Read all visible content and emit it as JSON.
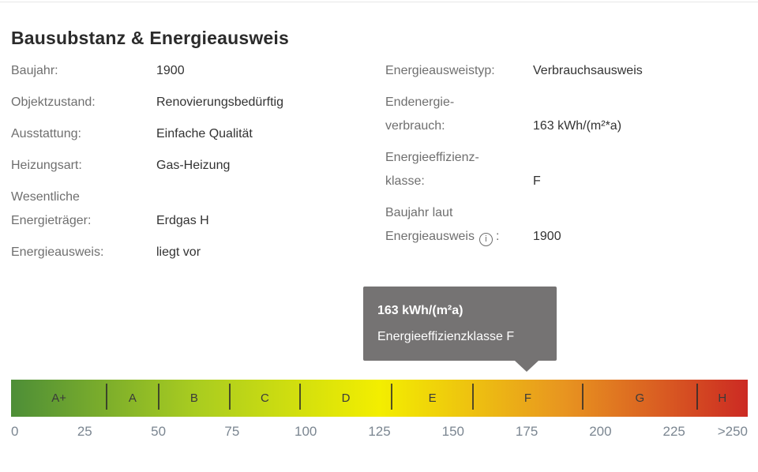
{
  "title": "Bausubstanz & Energieausweis",
  "left_rows": [
    {
      "label_lines": [
        "Baujahr:"
      ],
      "value": "1900"
    },
    {
      "label_lines": [
        "Objektzustand:"
      ],
      "value": "Renovierungsbedürftig"
    },
    {
      "label_lines": [
        "Ausstattung:"
      ],
      "value": "Einfache Qualität"
    },
    {
      "label_lines": [
        "Heizungsart:"
      ],
      "value": "Gas-Heizung"
    },
    {
      "label_lines": [
        "Wesentliche",
        "Energieträger:"
      ],
      "value": "Erdgas H"
    },
    {
      "label_lines": [
        "Energieausweis:"
      ],
      "value": "liegt vor"
    }
  ],
  "right_rows": [
    {
      "label_lines": [
        "Energieausweistyp:"
      ],
      "value": "Verbrauchsausweis"
    },
    {
      "label_lines": [
        "Endenergie-",
        "verbrauch:"
      ],
      "value": "163 kWh/(m²*a)"
    },
    {
      "label_lines": [
        "Energieeffizienz-",
        "klasse:"
      ],
      "value": "F"
    },
    {
      "label_lines": [
        "Baujahr laut",
        "Energieausweis"
      ],
      "icon_glyph": "i",
      "colon": ":",
      "value": "1900"
    }
  ],
  "tooltip": {
    "value_line": "163 kWh/(m²a)",
    "class_line": "Energieeffizienzklasse F",
    "bg_color": "#757373",
    "text_color": "#ffffff"
  },
  "energy_scale": {
    "classes": [
      {
        "label": "A+"
      },
      {
        "label": "A"
      },
      {
        "label": "B"
      },
      {
        "label": "C"
      },
      {
        "label": "D"
      },
      {
        "label": "E"
      },
      {
        "label": "F"
      },
      {
        "label": "G"
      },
      {
        "label": "H"
      }
    ],
    "ticks": [
      "0",
      "25",
      "50",
      "75",
      "100",
      "125",
      "150",
      "175",
      "200",
      "225",
      ">250"
    ],
    "gradient_colors": [
      "#4d8e37",
      "#a9cc20",
      "#f3ee00",
      "#e89520",
      "#cc2a23"
    ],
    "current_value": "163",
    "current_class": "F"
  }
}
